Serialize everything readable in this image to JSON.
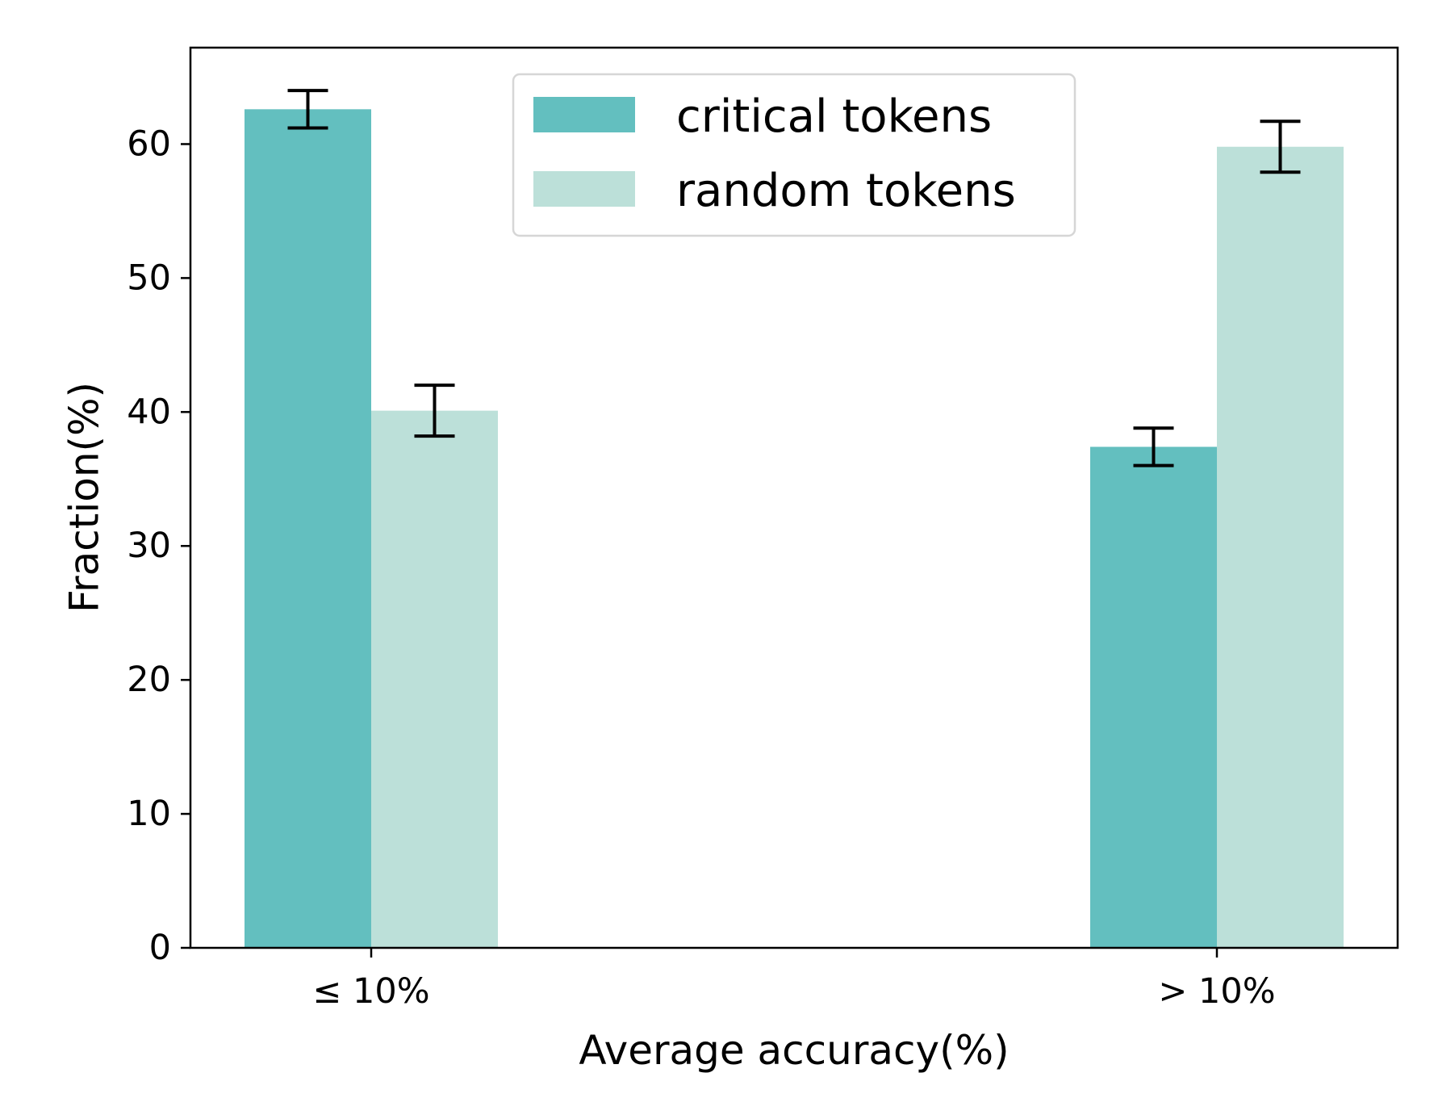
{
  "chart_data": {
    "type": "bar",
    "title": "",
    "xlabel": "Average accuracy(%)",
    "ylabel": "Fraction(%)",
    "categories": [
      "≤ 10%",
      "> 10%"
    ],
    "ylim": [
      0,
      67.2
    ],
    "yticks": [
      0,
      10,
      20,
      30,
      40,
      50,
      60
    ],
    "grid": false,
    "legend_position": "top-center",
    "series": [
      {
        "name": "critical tokens",
        "color": "#63bfbf",
        "values": [
          62.6,
          37.4
        ],
        "errors": [
          1.4,
          1.4
        ]
      },
      {
        "name": "random tokens",
        "color": "#bce0d9",
        "values": [
          40.1,
          59.8
        ],
        "errors": [
          1.9,
          1.9
        ]
      }
    ]
  }
}
